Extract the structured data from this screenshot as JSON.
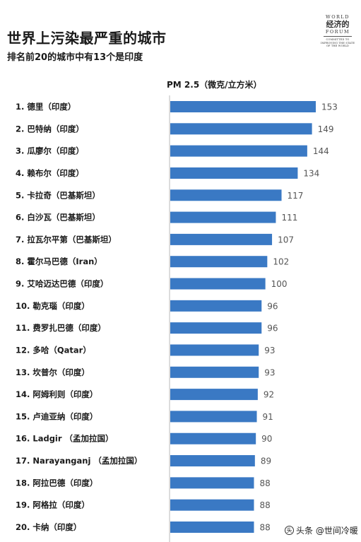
{
  "header": {
    "title": "世界上污染最严重的城市",
    "subtitle": "排名前20的城市中有13个是印度"
  },
  "logo": {
    "line1": "WORLD",
    "line2": "经济的",
    "line3": "FORUM",
    "tagline": "COMMITTED TO\nIMPROVING THE STATE\nOF THE WORLD"
  },
  "watermark": {
    "text": "头条 @世间冷暖"
  },
  "chart_data": {
    "type": "bar",
    "orientation": "horizontal",
    "title": "世界上污染最严重的城市",
    "subtitle": "排名前20的城市中有13个是印度",
    "value_header": "PM 2.5（微克/立方米）",
    "xlim": [
      0,
      160
    ],
    "grid": false,
    "legend": "none",
    "bar_color": "#3a79c4",
    "categories": [
      "1. 德里（印度）",
      "2. 巴特纳（印度）",
      "3. 瓜廖尔（印度）",
      "4. 赖布尔（印度）",
      "5. 卡拉奇（巴基斯坦）",
      "6. 白沙瓦（巴基斯坦）",
      "7. 拉瓦尔平第（巴基斯坦）",
      "8. 霍尔马巴德（Iran）",
      "9. 艾哈迈达巴德（印度）",
      "10. 勒克瑙（印度）",
      "11. 费罗扎巴德（印度）",
      "12. 多哈（Qatar）",
      "13. 坎普尔（印度）",
      "14. 阿姆利则（印度）",
      "15. 卢迪亚纳（印度）",
      "16. Ladgir （孟加拉国）",
      "17. Narayanganj （孟加拉国）",
      "18. 阿拉巴德（印度）",
      "19. 阿格拉（印度）",
      "20. 卡纳（印度）"
    ],
    "values": [
      153,
      149,
      144,
      134,
      117,
      111,
      107,
      102,
      100,
      96,
      96,
      93,
      93,
      92,
      91,
      90,
      89,
      88,
      88,
      88
    ]
  }
}
